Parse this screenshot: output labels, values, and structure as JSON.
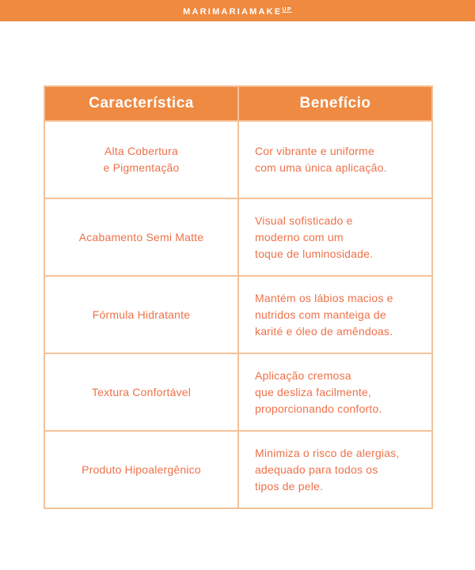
{
  "brand": {
    "logo_main": "MARIMARIAMAKE",
    "logo_sup": "UP"
  },
  "colors": {
    "top_bar": "#ef8a40",
    "header_bg": "#ef8a43",
    "header_text": "#ffffff",
    "body_text": "#ee7149",
    "table_border": "#f4c198",
    "page_bg": "#ffffff"
  },
  "table": {
    "headers": [
      "Característica",
      "Benefício"
    ],
    "rows": [
      {
        "feature": "Alta Cobertura\ne Pigmentação",
        "benefit": "Cor vibrante e uniforme\ncom uma única aplicação."
      },
      {
        "feature": "Acabamento Semi Matte",
        "benefit": "Visual sofisticado e\nmoderno com um\ntoque de luminosidade."
      },
      {
        "feature": "Fórmula Hidratante",
        "benefit": "Mantém os lábios macios e\nnutridos com manteiga de\nkarité e óleo de amêndoas."
      },
      {
        "feature": "Textura Confortável",
        "benefit": "Aplicação cremosa\nque desliza facilmente,\nproporcionando conforto."
      },
      {
        "feature": "Produto Hipoalergênico",
        "benefit": "Minimiza o risco de alergias,\nadequado para todos os\ntipos de pele."
      }
    ]
  }
}
